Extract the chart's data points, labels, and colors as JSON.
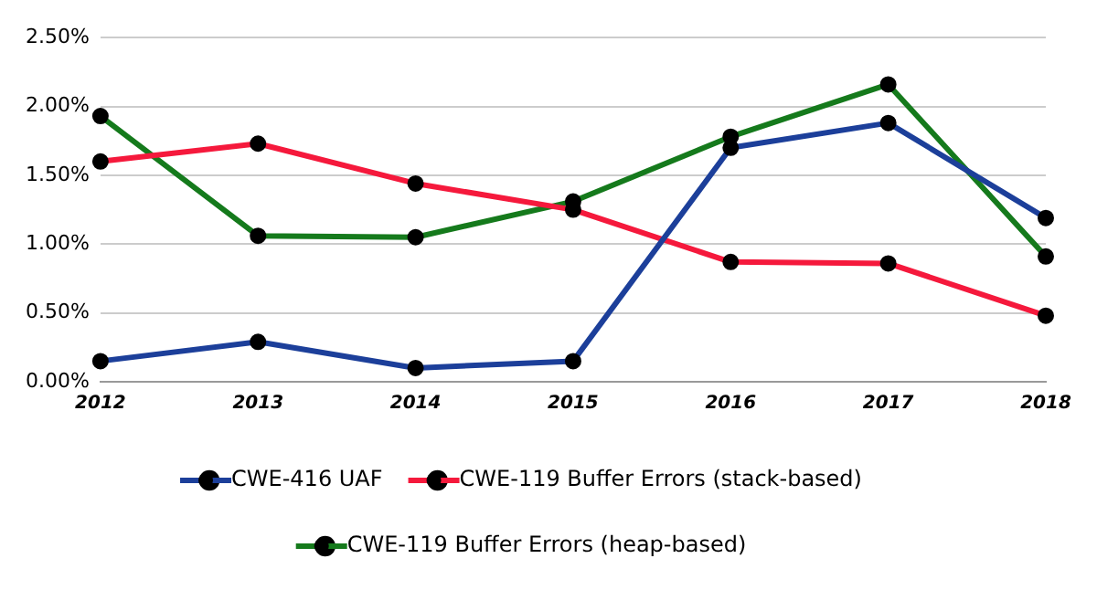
{
  "chart_data": {
    "type": "line",
    "categories": [
      "2012",
      "2013",
      "2014",
      "2015",
      "2016",
      "2017",
      "2018"
    ],
    "series": [
      {
        "name": "CWE-416 UAF",
        "color": "#1c3f9a",
        "values": [
          0.15,
          0.29,
          0.1,
          0.15,
          1.7,
          1.88,
          1.19
        ]
      },
      {
        "name": "CWE-119 Buffer Errors (stack-based)",
        "color": "#f5193c",
        "values": [
          1.6,
          1.73,
          1.44,
          1.25,
          0.87,
          0.86,
          0.48
        ]
      },
      {
        "name": "CWE-119 Buffer Errors (heap-based)",
        "color": "#157a1c",
        "values": [
          1.93,
          1.06,
          1.05,
          1.31,
          1.78,
          2.16,
          0.91
        ]
      }
    ],
    "ylim": [
      0,
      2.5
    ],
    "yticks": [
      {
        "value": 0,
        "label": "0.00%"
      },
      {
        "value": 0.5,
        "label": "0.50%"
      },
      {
        "value": 1,
        "label": "1.00%"
      },
      {
        "value": 1.5,
        "label": "1.50%"
      },
      {
        "value": 2,
        "label": "2.00%"
      },
      {
        "value": 2.5,
        "label": "2.50%"
      }
    ],
    "grid": "y",
    "legend": "bottom",
    "marker": "circle",
    "line_style": "solid"
  }
}
